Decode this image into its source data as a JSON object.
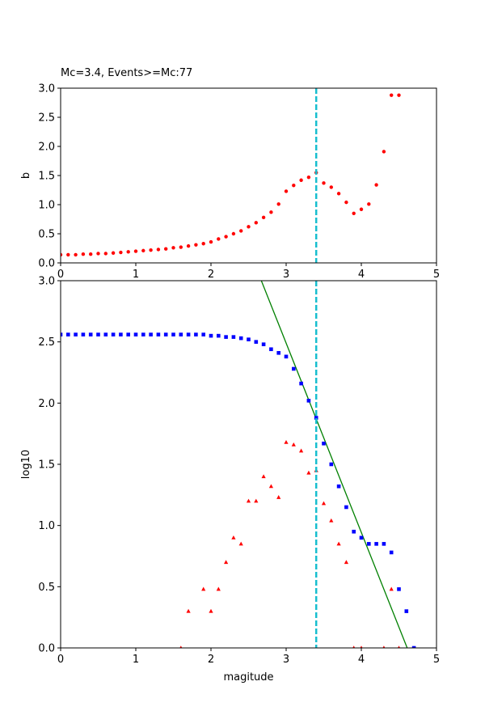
{
  "chart_data": [
    {
      "type": "scatter",
      "title": "Mc=3.4, Events>=Mc:77",
      "xlabel": "",
      "ylabel": "b",
      "xlim": [
        0,
        5
      ],
      "ylim": [
        0,
        3
      ],
      "xticks": [
        "0",
        "1",
        "2",
        "3",
        "4",
        "5"
      ],
      "yticks": [
        "0.0",
        "0.5",
        "1.0",
        "1.5",
        "2.0",
        "2.5",
        "3.0"
      ],
      "vline_x": 3.4,
      "series": [
        {
          "marker": "dot",
          "color": "#ff0000",
          "x": [
            0.0,
            0.1,
            0.2,
            0.3,
            0.4,
            0.5,
            0.6,
            0.7,
            0.8,
            0.9,
            1.0,
            1.1,
            1.2,
            1.3,
            1.4,
            1.5,
            1.6,
            1.7,
            1.8,
            1.9,
            2.0,
            2.1,
            2.2,
            2.3,
            2.4,
            2.5,
            2.6,
            2.7,
            2.8,
            2.9,
            3.0,
            3.1,
            3.2,
            3.3,
            3.4,
            3.5,
            3.6,
            3.7,
            3.8,
            3.9,
            4.0,
            4.1,
            4.2,
            4.3,
            4.4,
            4.5
          ],
          "y": [
            0.14,
            0.14,
            0.14,
            0.15,
            0.15,
            0.16,
            0.16,
            0.17,
            0.18,
            0.19,
            0.2,
            0.21,
            0.22,
            0.23,
            0.24,
            0.26,
            0.27,
            0.29,
            0.31,
            0.33,
            0.36,
            0.41,
            0.45,
            0.5,
            0.55,
            0.62,
            0.69,
            0.78,
            0.87,
            1.01,
            1.23,
            1.33,
            1.42,
            1.47,
            1.55,
            1.37,
            1.3,
            1.19,
            1.04,
            0.85,
            0.92,
            1.01,
            1.34,
            1.91,
            2.88,
            2.88
          ]
        }
      ]
    },
    {
      "type": "scatter",
      "title": "",
      "xlabel": "magitude",
      "ylabel": "log10",
      "xlim": [
        0,
        5
      ],
      "ylim": [
        0,
        3
      ],
      "xticks": [
        "0",
        "1",
        "2",
        "3",
        "4",
        "5"
      ],
      "yticks": [
        "0.0",
        "0.5",
        "1.0",
        "1.5",
        "2.0",
        "2.5",
        "3.0"
      ],
      "vline_x": 3.4,
      "fit_line": {
        "color": "#008000",
        "x": [
          2.67,
          4.61
        ],
        "y": [
          3.0,
          0.0
        ]
      },
      "series": [
        {
          "marker": "square",
          "color": "#0000ff",
          "x": [
            0.0,
            0.1,
            0.2,
            0.3,
            0.4,
            0.5,
            0.6,
            0.7,
            0.8,
            0.9,
            1.0,
            1.1,
            1.2,
            1.3,
            1.4,
            1.5,
            1.6,
            1.7,
            1.8,
            1.9,
            2.0,
            2.1,
            2.2,
            2.3,
            2.4,
            2.5,
            2.6,
            2.7,
            2.8,
            2.9,
            3.0,
            3.1,
            3.2,
            3.3,
            3.4,
            3.5,
            3.6,
            3.7,
            3.8,
            3.9,
            4.0,
            4.1,
            4.2,
            4.3,
            4.4,
            4.5,
            4.6,
            4.7
          ],
          "y": [
            2.56,
            2.56,
            2.56,
            2.56,
            2.56,
            2.56,
            2.56,
            2.56,
            2.56,
            2.56,
            2.56,
            2.56,
            2.56,
            2.56,
            2.56,
            2.56,
            2.56,
            2.56,
            2.56,
            2.56,
            2.55,
            2.55,
            2.54,
            2.54,
            2.53,
            2.52,
            2.5,
            2.48,
            2.44,
            2.41,
            2.38,
            2.28,
            2.16,
            2.02,
            1.88,
            1.67,
            1.5,
            1.32,
            1.15,
            0.95,
            0.9,
            0.85,
            0.85,
            0.85,
            0.78,
            0.48,
            0.3,
            0.0
          ]
        },
        {
          "marker": "triangle",
          "color": "#ff0000",
          "x": [
            1.6,
            1.7,
            1.9,
            2.0,
            2.1,
            2.2,
            2.3,
            2.4,
            2.5,
            2.6,
            2.7,
            2.8,
            2.9,
            3.0,
            3.1,
            3.2,
            3.3,
            3.4,
            3.5,
            3.6,
            3.7,
            3.8,
            3.9,
            4.0,
            4.3,
            4.4,
            4.5
          ],
          "y": [
            0.0,
            0.3,
            0.48,
            0.3,
            0.48,
            0.7,
            0.9,
            0.85,
            1.2,
            1.2,
            1.4,
            1.32,
            1.23,
            1.68,
            1.66,
            1.61,
            1.43,
            1.45,
            1.18,
            1.04,
            0.85,
            0.7,
            0.0,
            0.0,
            0.0,
            0.48,
            0.0
          ]
        }
      ]
    }
  ]
}
